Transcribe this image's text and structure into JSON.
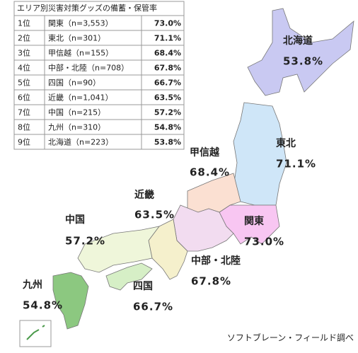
{
  "table": {
    "title": "エリア別災害対策グッズの備蓄・保管率",
    "rows": [
      [
        "1位",
        "関東（n=3,553）",
        "73.0%"
      ],
      [
        "2位",
        "東北（n=301）",
        "71.1%"
      ],
      [
        "3位",
        "甲信越（n=155）",
        "68.4%"
      ],
      [
        "4位",
        "中部・北陸（n=708）",
        "67.8%"
      ],
      [
        "5位",
        "四国（n=90）",
        "66.7%"
      ],
      [
        "6位",
        "近畿（n=1,041）",
        "63.5%"
      ],
      [
        "7位",
        "中国（n=215）",
        "57.2%"
      ],
      [
        "8位",
        "九州（n=310）",
        "54.8%"
      ],
      [
        "9位",
        "北海道（n=223）",
        "53.8%"
      ]
    ]
  },
  "map_labels": [
    {
      "name": "北海道",
      "rate": "53.8%"
    },
    {
      "name": "東北",
      "rate": "71.1%"
    },
    {
      "name": "甲信越",
      "rate": "68.4%"
    },
    {
      "name": "近畿",
      "rate": "63.5%"
    },
    {
      "name": "中国",
      "rate": "57.2%"
    },
    {
      "name": "関東",
      "rate": "73.0%"
    },
    {
      "name": "中部・北陸",
      "rate": "67.8%"
    },
    {
      "name": "四国",
      "rate": "66.7%"
    },
    {
      "name": "九州",
      "rate": "54.8%"
    }
  ],
  "source": "ソフトブレーン・フィールド調べ"
}
